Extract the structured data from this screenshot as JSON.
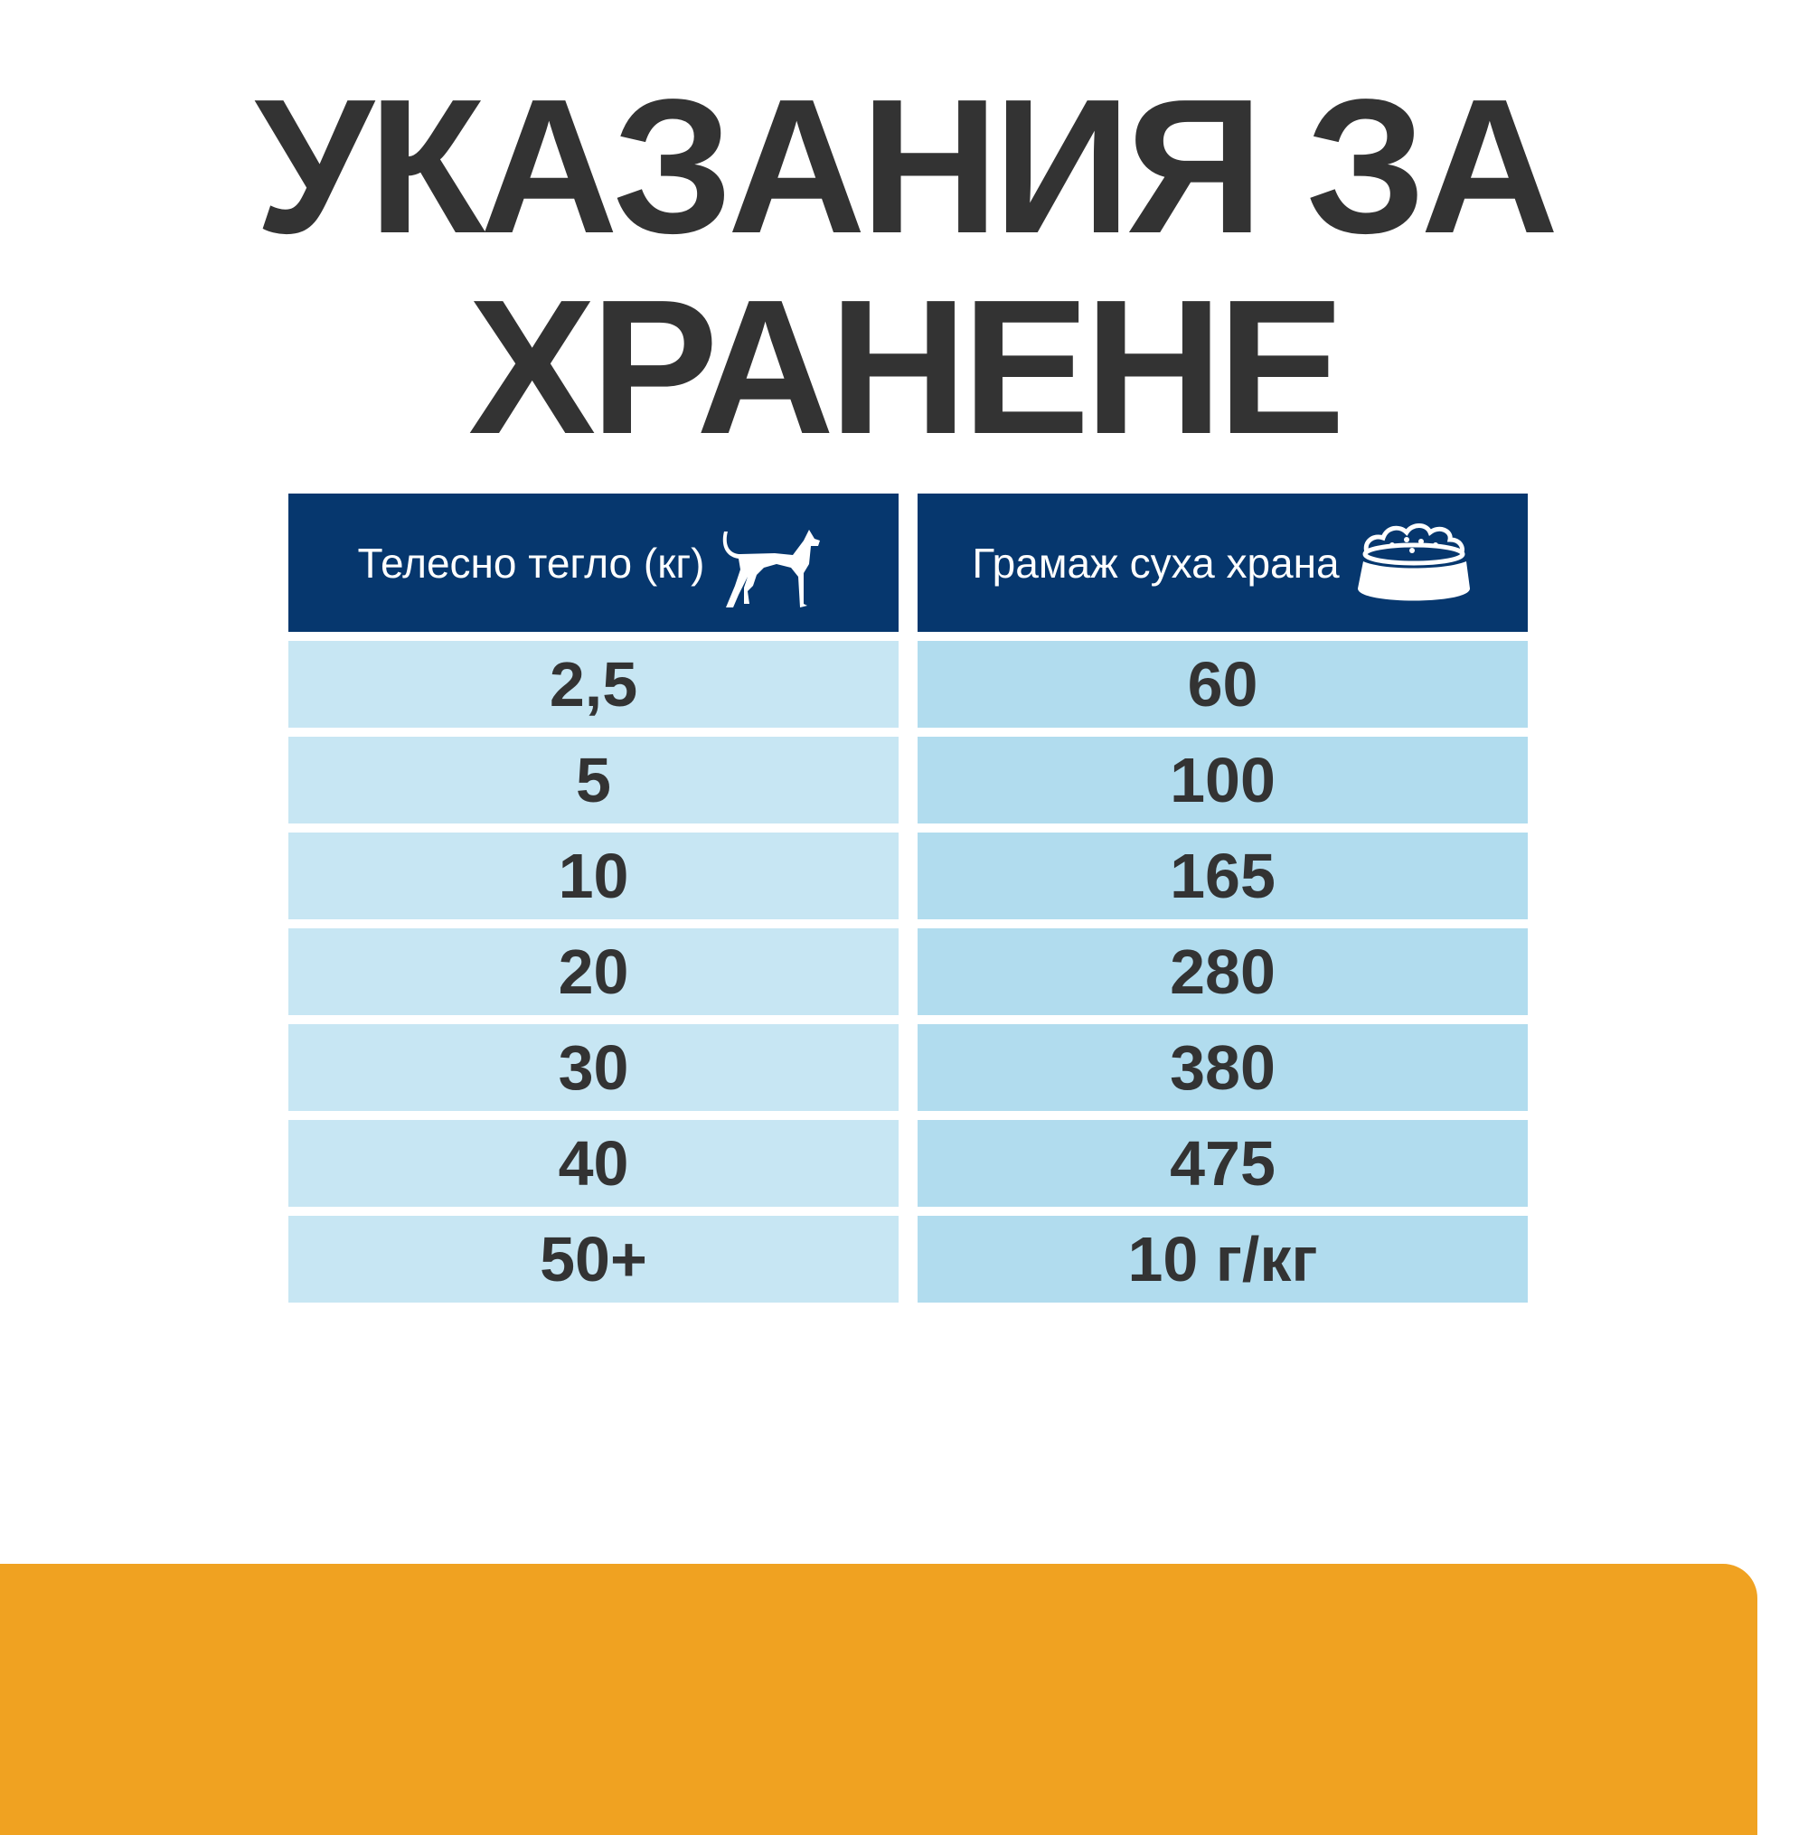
{
  "title": {
    "line1": "УКАЗАНИЯ ЗА",
    "line2": "ХРАНЕНЕ"
  },
  "table": {
    "headers": [
      {
        "label": "Телесно тегло (кг)",
        "icon": "dog-icon"
      },
      {
        "label": "Грамаж суха храна",
        "icon": "food-bowl-icon"
      }
    ],
    "rows": [
      [
        "2,5",
        "60"
      ],
      [
        "5",
        "100"
      ],
      [
        "10",
        "165"
      ],
      [
        "20",
        "280"
      ],
      [
        "30",
        "380"
      ],
      [
        "40",
        "475"
      ],
      [
        "50+",
        "10 г/кг"
      ]
    ]
  },
  "colors": {
    "header": "#06376e",
    "col1": "#c7e6f3",
    "col2": "#b1dcee",
    "accent": "#f0a221",
    "text": "#333333"
  }
}
